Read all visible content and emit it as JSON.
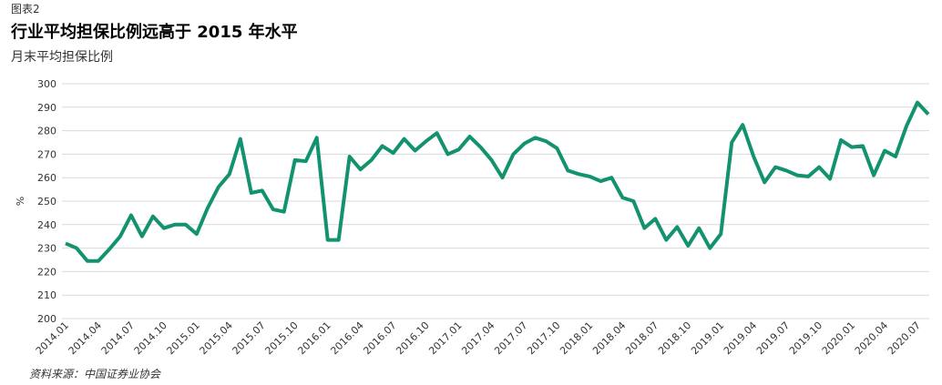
{
  "chart_data": {
    "type": "line",
    "label": "图表2",
    "title": "行业平均担保比例远高于 2015 年水平",
    "subtitle": "月末平均担保比例",
    "y_label": "%",
    "source": "资料来源：中国证券业协会",
    "categories": [
      "2014.01",
      null,
      null,
      "2014.04",
      null,
      null,
      "2014.07",
      null,
      null,
      "2014.10",
      null,
      null,
      "2015.01",
      null,
      null,
      "2015.04",
      null,
      null,
      "2015.07",
      null,
      null,
      "2015.10",
      null,
      null,
      "2016.01",
      null,
      null,
      "2016.04",
      null,
      null,
      "2016.07",
      null,
      null,
      "2016.10",
      null,
      null,
      "2017.01",
      null,
      null,
      "2017.04",
      null,
      null,
      "2017.07",
      null,
      null,
      "2017.10",
      null,
      null,
      "2018.01",
      null,
      null,
      "2018.04",
      null,
      null,
      "2018.07",
      null,
      null,
      "2018.10",
      null,
      null,
      "2019.01",
      null,
      null,
      "2019.04",
      null,
      null,
      "2019.07",
      null,
      null,
      "2019.10",
      null,
      null,
      "2020.01",
      null,
      null,
      "2020.04",
      null,
      null,
      "2020.07",
      null
    ],
    "series": [
      {
        "color": "#139270",
        "values": [
          232,
          230,
          224.5,
          224.5,
          229.5,
          235,
          244,
          235,
          243.5,
          238.5,
          240,
          240,
          236,
          247,
          256,
          261.5,
          276.5,
          253.5,
          254.5,
          246.5,
          245.5,
          267.5,
          267,
          277,
          233.5,
          233.5,
          269,
          263.5,
          267.5,
          273.5,
          270.5,
          276.5,
          271.5,
          275.5,
          279,
          270,
          272,
          277.5,
          273,
          267.5,
          260,
          270,
          274.5,
          277,
          275.5,
          272.5,
          263,
          261.5,
          260.5,
          258.5,
          260,
          251.5,
          250,
          238.5,
          242.5,
          233.5,
          239,
          231,
          238.5,
          230,
          236,
          275,
          282.5,
          269,
          258,
          264.5,
          263,
          261,
          260.5,
          264.5,
          259.5,
          276,
          273,
          273.5,
          261,
          271.5,
          269,
          282,
          292,
          287
        ]
      }
    ],
    "ylim": [
      200,
      300
    ],
    "yticks": [
      200,
      210,
      220,
      230,
      240,
      250,
      260,
      270,
      280,
      290,
      300
    ],
    "grid": true
  }
}
